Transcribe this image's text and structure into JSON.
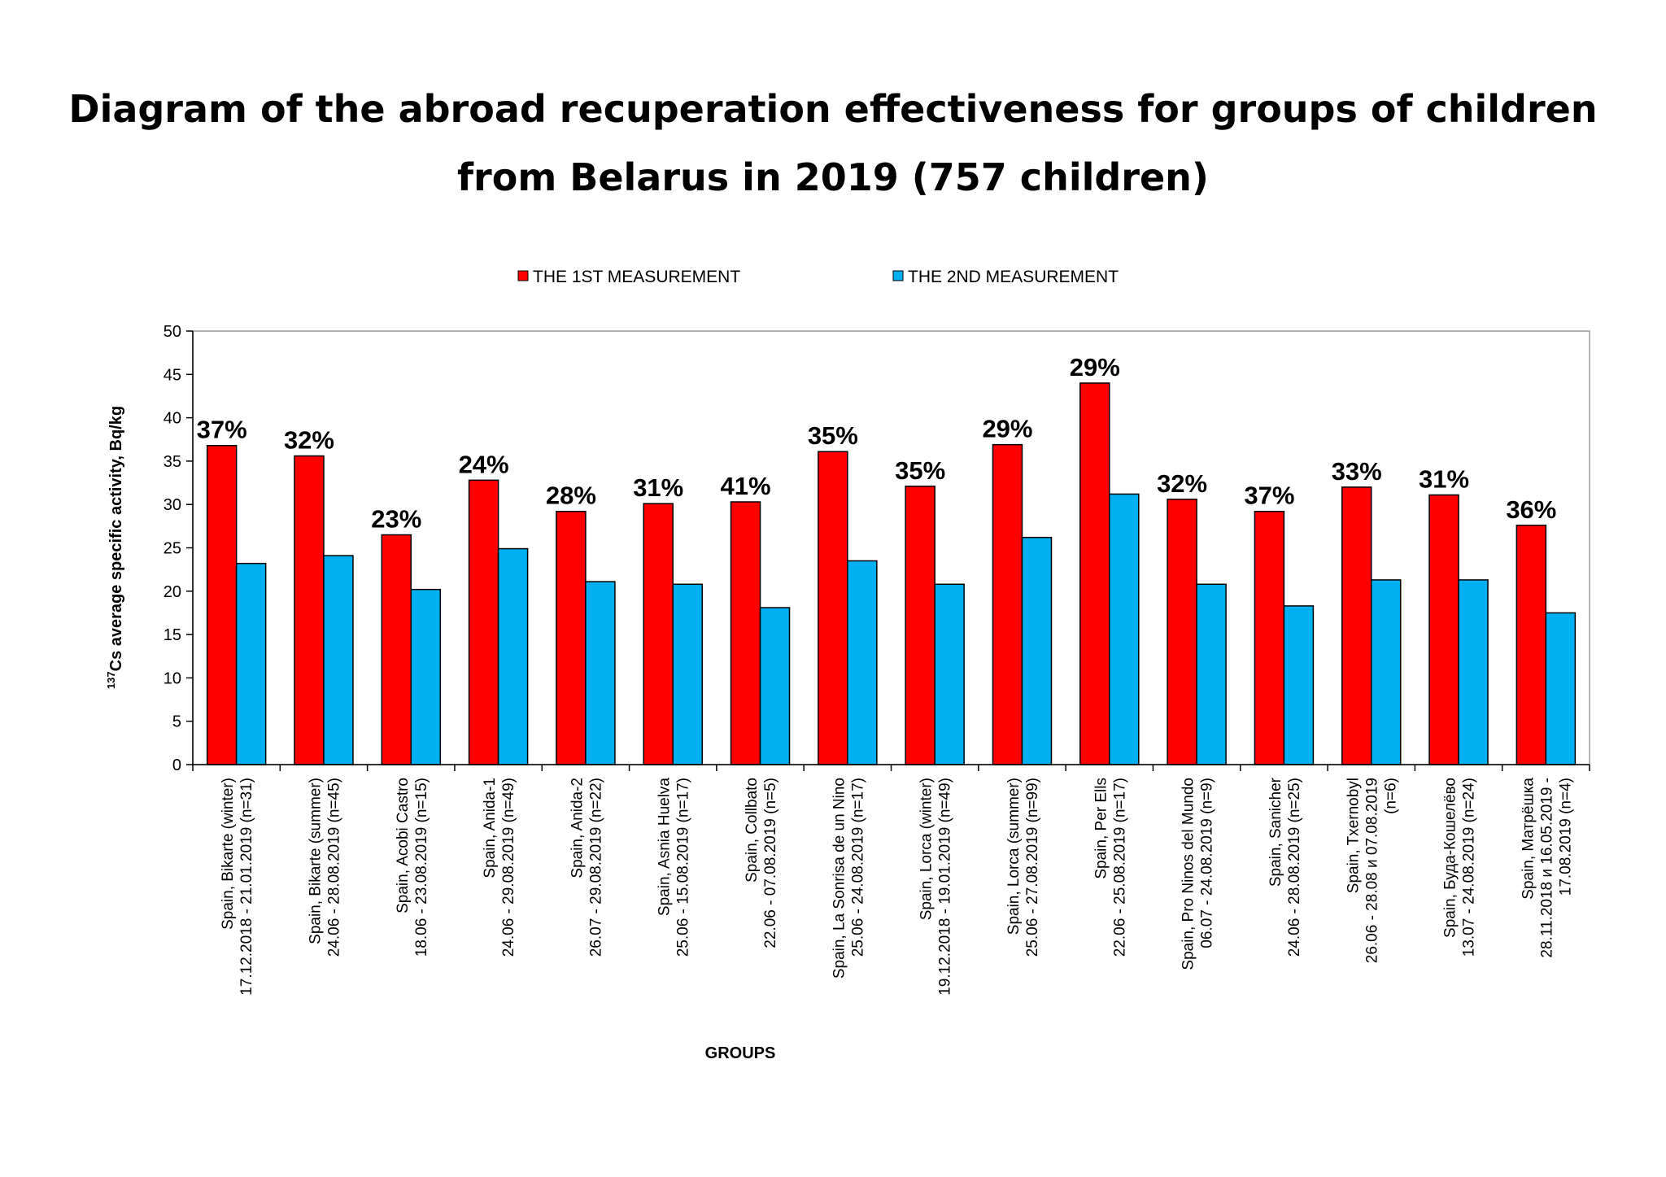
{
  "chart_data": {
    "type": "bar",
    "title": [
      "Diagram of the abroad recuperation effectiveness for groups of children",
      "from Belarus in 2019 (757 children)"
    ],
    "xlabel": "GROUPS",
    "ylabel": {
      "superscript": "137",
      "text": "Cs average  specific  activity,  Bq/kg"
    },
    "ylim": [
      0,
      50
    ],
    "yticks": [
      0,
      5,
      10,
      15,
      20,
      25,
      30,
      35,
      40,
      45,
      50
    ],
    "grid": false,
    "legend_position": "top",
    "categories": [
      [
        "Spain, Bikarte (winter)",
        "17.12.2018 - 21.01.2019 (n=31)"
      ],
      [
        "Spain, Bikarte (summer)",
        "24.06 - 28.08.2019 (n=45)"
      ],
      [
        "Spain, Acobi Castro",
        "18.06 - 23.08.2019 (n=15)"
      ],
      [
        "Spain, Anida-1",
        "24.06 - 29.08.2019 (n=49)"
      ],
      [
        "Spain, Anida-2",
        "26.07 - 29.08.2019 (n=22)"
      ],
      [
        "Spain, Asnia Huelva",
        "25.06 - 15.08.2019 (n=17)"
      ],
      [
        "Spain, Collbato",
        "22.06 - 07.08.2019 (n=5)"
      ],
      [
        "Spain, La Sonrisa de un Nino",
        "25.06 - 24.08.2019 (n=17)"
      ],
      [
        "Spain, Lorca (winter)",
        "19.12.2018 - 19.01.2019 (n=49)"
      ],
      [
        "Spain, Lorca (summer)",
        "25.06 - 27.08.2019 (n=99)"
      ],
      [
        "Spain, Per Ells",
        "22.06 - 25.08.2019 (n=17)"
      ],
      [
        "Spain, Pro Ninos del Mundo",
        "06.07 - 24.08.2019 (n=9)"
      ],
      [
        "Spain, Sanicher",
        "24.06 - 28.08.2019 (n=25)"
      ],
      [
        "Spain,  Txernobyl",
        "26.06 - 28.08  и 07.08.2019",
        "(n=6)"
      ],
      [
        "Spain,  Буда-Кошелёво",
        "13.07 - 24.08.2019   (n=24)"
      ],
      [
        "Spain,  Матрёшка",
        "28.11.2018  и 16.05.2019  -",
        "17.08.2019   (n=4)"
      ]
    ],
    "series": [
      {
        "name": "THE 1ST MEASUREMENT",
        "color": "#ff0000",
        "values": [
          36.8,
          35.6,
          26.5,
          32.8,
          29.2,
          30.1,
          30.3,
          36.1,
          32.1,
          36.9,
          44.0,
          30.6,
          29.2,
          32.0,
          31.1,
          27.6
        ]
      },
      {
        "name": "THE 2ND MEASUREMENT",
        "color": "#00b0f0",
        "values": [
          23.2,
          24.1,
          20.2,
          24.9,
          21.1,
          20.8,
          18.1,
          23.5,
          20.8,
          26.2,
          31.2,
          20.8,
          18.3,
          21.3,
          21.3,
          17.5
        ]
      }
    ],
    "annotations": [
      "37%",
      "32%",
      "23%",
      "24%",
      "28%",
      "31%",
      "41%",
      "35%",
      "35%",
      "29%",
      "29%",
      "32%",
      "37%",
      "33%",
      "31%",
      "36%"
    ]
  }
}
